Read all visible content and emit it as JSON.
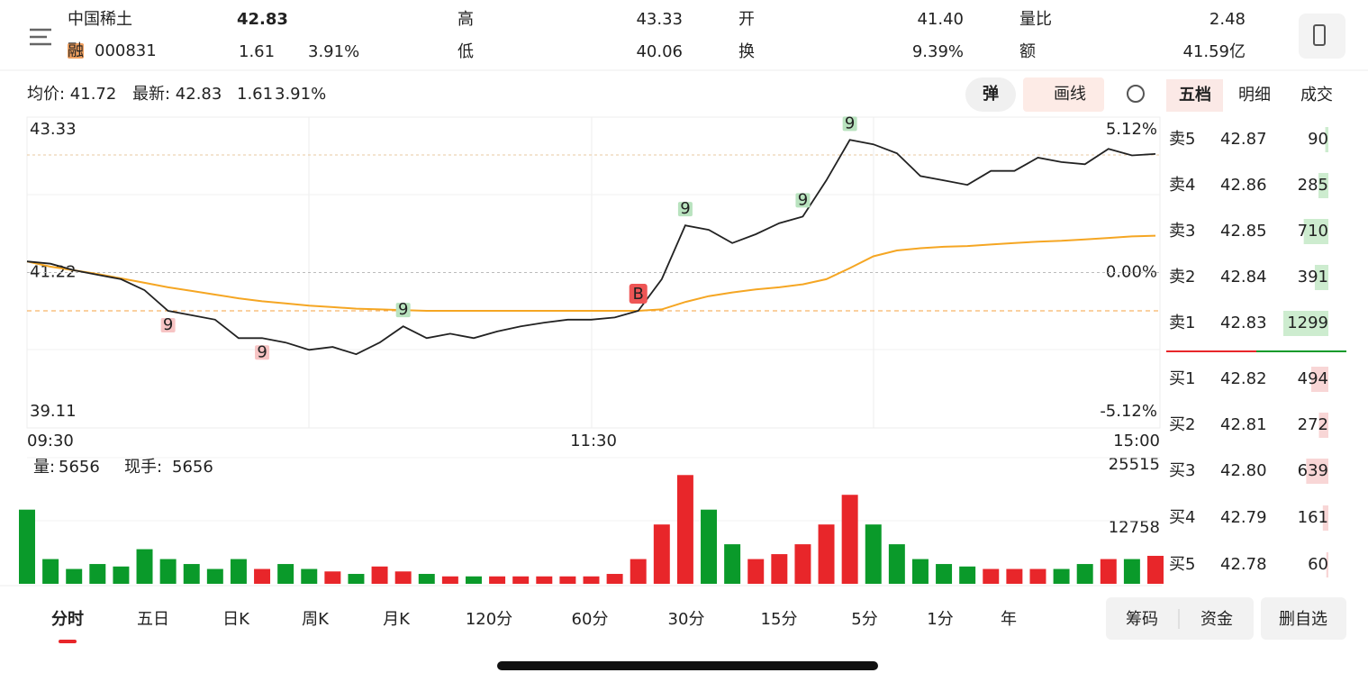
{
  "header": {
    "name": "中国稀土",
    "badge": "融",
    "code": "000831",
    "price": "42.83",
    "change": "1.61",
    "change_pct": "3.91%",
    "stats": [
      {
        "label": "高",
        "value": "43.33",
        "color": "#e8262a"
      },
      {
        "label": "低",
        "value": "40.06",
        "color": "#0a9a2a"
      },
      {
        "label": "开",
        "value": "41.40",
        "color": "#e8262a"
      },
      {
        "label": "换",
        "value": "9.39%",
        "color": "#222222"
      },
      {
        "label": "量比",
        "value": "2.48",
        "color": "#e8262a"
      },
      {
        "label": "额",
        "value": "41.59亿",
        "color": "#222222"
      }
    ]
  },
  "toolbar": {
    "avg": "均价: 41.72",
    "latest": "最新: 42.83",
    "change": "1.61",
    "pct": "3.91%",
    "buttons": [
      "弹",
      "画线"
    ]
  },
  "chart_data": [
    {
      "type": "line",
      "x_labels": [
        "09:30",
        "11:30",
        "15:00"
      ],
      "ylim": [
        39.11,
        43.33
      ],
      "yticks": [
        43.33,
        41.22,
        39.11
      ],
      "y2lim": [
        -5.12,
        5.12
      ],
      "y2ticks": [
        {
          "value": 5.12,
          "label": "5.12%"
        },
        {
          "value": 0,
          "label": "0.00%"
        },
        {
          "value": -5.12,
          "label": "-5.12%"
        }
      ],
      "series": [
        {
          "color": "#222222",
          "values": [
            41.37,
            41.34,
            41.25,
            41.19,
            41.13,
            40.98,
            40.7,
            40.64,
            40.58,
            40.33,
            40.33,
            40.27,
            40.17,
            40.21,
            40.11,
            40.27,
            40.49,
            40.33,
            40.39,
            40.33,
            40.42,
            40.49,
            40.54,
            40.58,
            40.58,
            40.61,
            40.7,
            41.13,
            41.86,
            41.8,
            41.62,
            41.74,
            41.89,
            41.98,
            42.47,
            43.02,
            42.96,
            42.84,
            42.53,
            42.47,
            42.41,
            42.6,
            42.6,
            42.78,
            42.72,
            42.69,
            42.9,
            42.81,
            42.83
          ]
        },
        {
          "color": "#f5a623",
          "values": [
            41.37,
            41.3,
            41.25,
            41.2,
            41.14,
            41.08,
            41.02,
            40.97,
            40.92,
            40.87,
            40.83,
            40.8,
            40.77,
            40.75,
            40.73,
            40.72,
            40.71,
            40.7,
            40.7,
            40.7,
            40.7,
            40.7,
            40.7,
            40.7,
            40.7,
            40.7,
            40.7,
            40.72,
            40.82,
            40.9,
            40.95,
            40.99,
            41.02,
            41.06,
            41.13,
            41.28,
            41.44,
            41.52,
            41.55,
            41.57,
            41.58,
            41.6,
            41.62,
            41.64,
            41.65,
            41.67,
            41.69,
            41.71,
            41.72
          ]
        }
      ],
      "markers": [
        {
          "label": "9",
          "point": 6,
          "color": "#e8262a"
        },
        {
          "label": "9",
          "point": 10,
          "color": "#e8262a"
        },
        {
          "label": "9",
          "point": 16,
          "color": "#0a9a2a"
        },
        {
          "label": "B",
          "point": 26,
          "color": "#e8262a"
        },
        {
          "label": "9",
          "point": 28,
          "color": "#0a9a2a"
        },
        {
          "label": "9",
          "point": 33,
          "color": "#0a9a2a"
        },
        {
          "label": "9",
          "point": 35,
          "color": "#0a9a2a"
        }
      ]
    },
    {
      "type": "bar",
      "info": [
        {
          "label": "量:",
          "value": "5656"
        },
        {
          "label": "现手:",
          "value": "5656"
        }
      ],
      "ylim": [
        0,
        25515
      ],
      "yticks": [
        12758,
        25515
      ],
      "up_color": "#e8262a",
      "down_color": "#0a9a2a",
      "values": [
        15000,
        5000,
        3000,
        4000,
        3500,
        7000,
        5000,
        4000,
        3000,
        5000,
        3000,
        4000,
        3000,
        2500,
        2000,
        3500,
        2500,
        2000,
        1500,
        1500,
        1500,
        1500,
        1500,
        1500,
        1500,
        2000,
        5000,
        12000,
        22000,
        15000,
        8000,
        5000,
        6000,
        8000,
        12000,
        18000,
        12000,
        8000,
        5000,
        4000,
        3500,
        3000,
        3000,
        3000,
        3000,
        4000,
        5000,
        5000,
        5656
      ]
    }
  ],
  "order_book": {
    "tabs": [
      "五档",
      "明细",
      "成交"
    ],
    "asks": [
      {
        "label": "卖5",
        "price": "42.87",
        "volume": 90
      },
      {
        "label": "卖4",
        "price": "42.86",
        "volume": 285
      },
      {
        "label": "卖3",
        "price": "42.85",
        "volume": 710
      },
      {
        "label": "卖2",
        "price": "42.84",
        "volume": 391
      },
      {
        "label": "卖1",
        "price": "42.83",
        "volume": 1299
      }
    ],
    "bids": [
      {
        "label": "买1",
        "price": "42.82",
        "volume": 494
      },
      {
        "label": "买2",
        "price": "42.81",
        "volume": 272
      },
      {
        "label": "买3",
        "price": "42.80",
        "volume": 639
      },
      {
        "label": "买4",
        "price": "42.79",
        "volume": 161
      },
      {
        "label": "买5",
        "price": "42.78",
        "volume": 60
      }
    ]
  },
  "period_tabs": [
    "分时",
    "五日",
    "日K",
    "周K",
    "月K",
    "120分",
    "60分",
    "30分",
    "15分",
    "5分",
    "1分",
    "年"
  ],
  "buttons": [
    "筹码",
    "资金",
    "删自选"
  ]
}
